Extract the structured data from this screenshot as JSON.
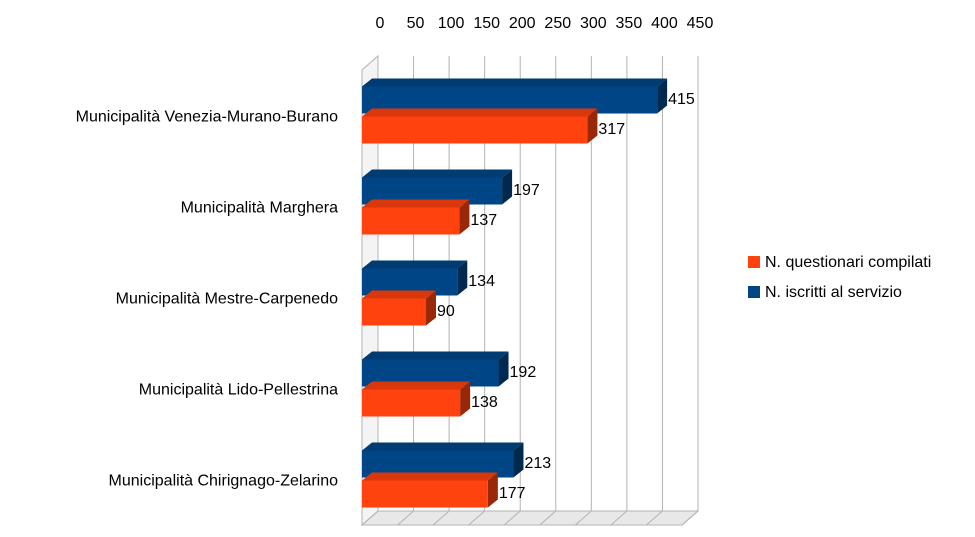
{
  "chart_data": {
    "type": "bar",
    "orientation": "horizontal",
    "three_d": true,
    "categories": [
      "Municipalità Venezia-Murano-Burano",
      "Municipalità Marghera",
      "Municipalità Mestre-Carpenedo",
      "Municipalità Lido-Pellestrina",
      "Municipalità Chirignago-Zelarino"
    ],
    "series": [
      {
        "name": "N. questionari compilati",
        "color": "#ff420e",
        "values": [
          317,
          137,
          90,
          138,
          177
        ]
      },
      {
        "name": "N. iscritti al servizio",
        "color": "#004586",
        "values": [
          415,
          197,
          134,
          192,
          213
        ]
      }
    ],
    "xlim": [
      0,
      450
    ],
    "xticks": [
      0,
      50,
      100,
      150,
      200,
      250,
      300,
      350,
      400,
      450
    ],
    "grid": true,
    "legend": "right"
  }
}
